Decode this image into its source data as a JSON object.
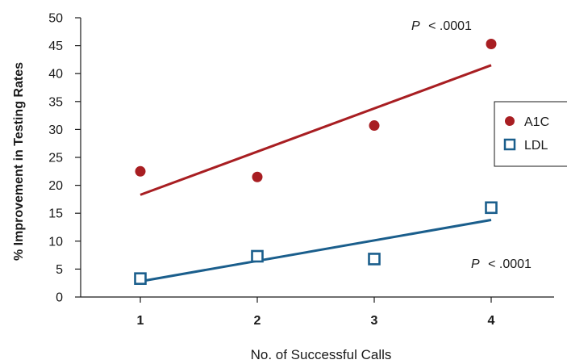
{
  "chart_data": {
    "type": "scatter",
    "xlabel": "No. of Successful Calls",
    "ylabel": "% Improvement in Testing Rates",
    "x_categories": [
      "1",
      "2",
      "3",
      "4"
    ],
    "x": [
      1,
      2,
      3,
      4
    ],
    "ylim": [
      0,
      50
    ],
    "yticks": [
      0,
      5,
      10,
      15,
      20,
      25,
      30,
      35,
      40,
      45,
      50
    ],
    "grid": false,
    "legend_position": "right",
    "series": [
      {
        "name": "A1C",
        "marker": "filled-circle",
        "color": "#a81e22",
        "values": [
          22.5,
          21.5,
          30.7,
          45.3
        ],
        "trendline": {
          "start": 18.3,
          "end": 41.5
        },
        "annotation_p": "P",
        "annotation_rest": "< .0001"
      },
      {
        "name": "LDL",
        "marker": "open-square",
        "color": "#1a5e8c",
        "values": [
          3.3,
          7.3,
          6.8,
          16.0
        ],
        "trendline": {
          "start": 2.8,
          "end": 13.8
        },
        "annotation_p": "P",
        "annotation_rest": "< .0001"
      }
    ]
  }
}
